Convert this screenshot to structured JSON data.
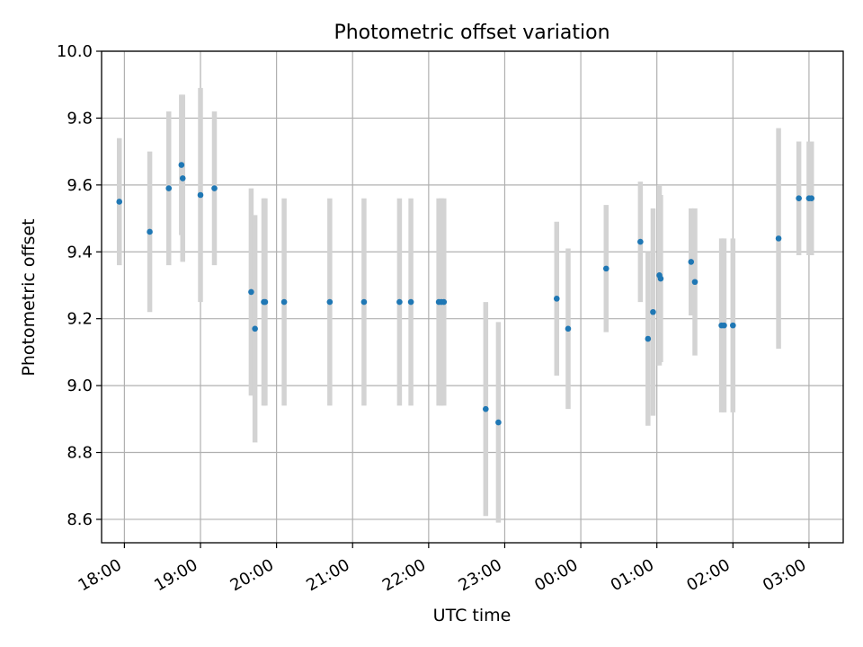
{
  "chart_data": {
    "type": "scatter",
    "title": "Photometric offset variation",
    "xlabel": "UTC time",
    "ylabel": "Photometric offset",
    "xlim": [
      "17:42",
      "03:27"
    ],
    "ylim": [
      8.53,
      10.0
    ],
    "grid": true,
    "colors": {
      "point": "#1f77b4",
      "errorbar": "#d3d3d3",
      "grid": "#b0b0b0"
    },
    "x_ticks": [
      "18:00",
      "19:00",
      "20:00",
      "21:00",
      "22:00",
      "23:00",
      "00:00",
      "01:00",
      "02:00",
      "03:00"
    ],
    "y_ticks": [
      "8.6",
      "8.8",
      "9.0",
      "9.2",
      "9.4",
      "9.6",
      "9.8",
      "10.0"
    ],
    "points": [
      {
        "x": "17:56",
        "y": 9.55,
        "err": 0.19
      },
      {
        "x": "18:20",
        "y": 9.46,
        "err": 0.24
      },
      {
        "x": "18:35",
        "y": 9.59,
        "err": 0.23
      },
      {
        "x": "18:45",
        "y": 9.66,
        "err": 0.21
      },
      {
        "x": "18:46",
        "y": 9.62,
        "err": 0.25
      },
      {
        "x": "19:00",
        "y": 9.57,
        "err": 0.32
      },
      {
        "x": "19:11",
        "y": 9.59,
        "err": 0.23
      },
      {
        "x": "19:40",
        "y": 9.28,
        "err": 0.31
      },
      {
        "x": "19:43",
        "y": 9.17,
        "err": 0.34
      },
      {
        "x": "19:50",
        "y": 9.25,
        "err": 0.31
      },
      {
        "x": "19:51",
        "y": 9.25,
        "err": 0.31
      },
      {
        "x": "20:06",
        "y": 9.25,
        "err": 0.31
      },
      {
        "x": "20:42",
        "y": 9.25,
        "err": 0.31
      },
      {
        "x": "21:09",
        "y": 9.25,
        "err": 0.31
      },
      {
        "x": "21:37",
        "y": 9.25,
        "err": 0.31
      },
      {
        "x": "21:46",
        "y": 9.25,
        "err": 0.31
      },
      {
        "x": "22:08",
        "y": 9.25,
        "err": 0.31
      },
      {
        "x": "22:10",
        "y": 9.25,
        "err": 0.31
      },
      {
        "x": "22:12",
        "y": 9.25,
        "err": 0.31
      },
      {
        "x": "22:45",
        "y": 8.93,
        "err": 0.32
      },
      {
        "x": "22:55",
        "y": 8.89,
        "err": 0.3
      },
      {
        "x": "23:41",
        "y": 9.26,
        "err": 0.23
      },
      {
        "x": "23:50",
        "y": 9.17,
        "err": 0.24
      },
      {
        "x": "00:20",
        "y": 9.35,
        "err": 0.19
      },
      {
        "x": "00:47",
        "y": 9.43,
        "err": 0.18
      },
      {
        "x": "00:53",
        "y": 9.14,
        "err": 0.26
      },
      {
        "x": "00:57",
        "y": 9.22,
        "err": 0.31
      },
      {
        "x": "01:02",
        "y": 9.33,
        "err": 0.27
      },
      {
        "x": "01:03",
        "y": 9.32,
        "err": 0.25
      },
      {
        "x": "01:27",
        "y": 9.37,
        "err": 0.16
      },
      {
        "x": "01:30",
        "y": 9.31,
        "err": 0.22
      },
      {
        "x": "01:51",
        "y": 9.18,
        "err": 0.26
      },
      {
        "x": "01:53",
        "y": 9.18,
        "err": 0.26
      },
      {
        "x": "02:00",
        "y": 9.18,
        "err": 0.26
      },
      {
        "x": "02:36",
        "y": 9.44,
        "err": 0.33
      },
      {
        "x": "02:52",
        "y": 9.56,
        "err": 0.17
      },
      {
        "x": "03:00",
        "y": 9.56,
        "err": 0.17
      },
      {
        "x": "03:02",
        "y": 9.56,
        "err": 0.17
      }
    ]
  }
}
